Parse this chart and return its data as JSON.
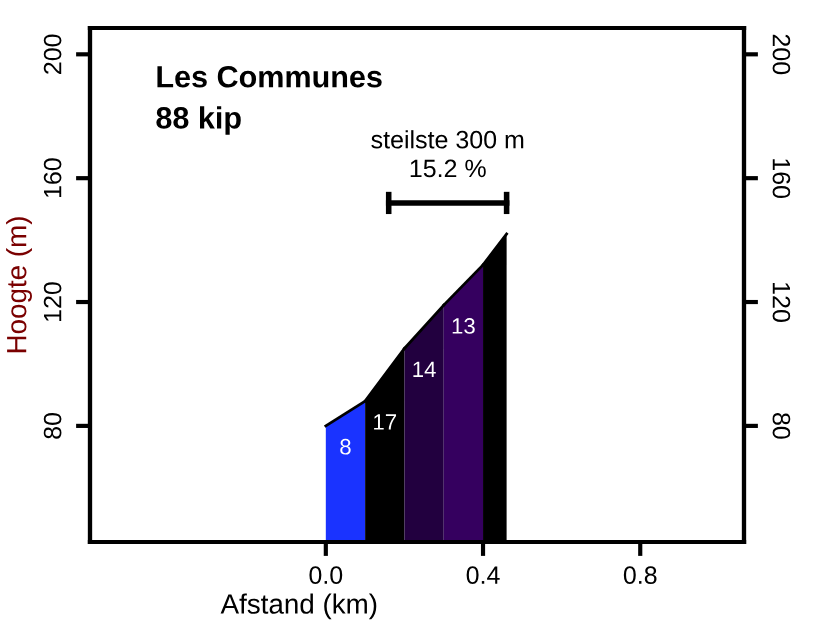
{
  "chart_data": {
    "type": "area",
    "title": "Les Communes",
    "subtitle": "88 kip",
    "xlabel": "Afstand (km)",
    "ylabel": "Hoogte (m)",
    "series": [
      {
        "x": [
          0,
          0.1
        ],
        "values": [
          80,
          88
        ],
        "color": "#1a33ff"
      },
      {
        "x": [
          0.1,
          0.2
        ],
        "values": [
          88,
          105
        ],
        "color": "#000000"
      },
      {
        "x": [
          0.2,
          0.3
        ],
        "values": [
          105,
          119
        ],
        "color": "#22003f"
      },
      {
        "x": [
          0.3,
          0.4
        ],
        "values": [
          119,
          132
        ],
        "color": "#35005f"
      },
      {
        "x": [
          0.4,
          0.46
        ],
        "values": [
          132,
          142
        ],
        "color": "#000000"
      },
      {
        "type": "line",
        "x": [
          0.16,
          0.46
        ],
        "values": [
          152,
          152
        ],
        "color": "#000000"
      }
    ],
    "annotations": [
      "steilste 300 m\n15.2 %",
      "8",
      "17",
      "14",
      "13"
    ],
    "xlim": [
      -0.6,
      1.064
    ],
    "ylim": [
      42.5,
      208.5
    ],
    "xticks": [
      {
        "value": 0,
        "label": "0.0"
      },
      {
        "value": 0.4,
        "label": "0.4"
      },
      {
        "value": 0.8,
        "label": "0.8"
      }
    ],
    "yticks": [
      80,
      120,
      160,
      200
    ],
    "y2lim": [
      42.5,
      208.5
    ],
    "y2ticks": [
      80,
      120,
      160,
      200
    ],
    "grid": false,
    "legend": false
  }
}
